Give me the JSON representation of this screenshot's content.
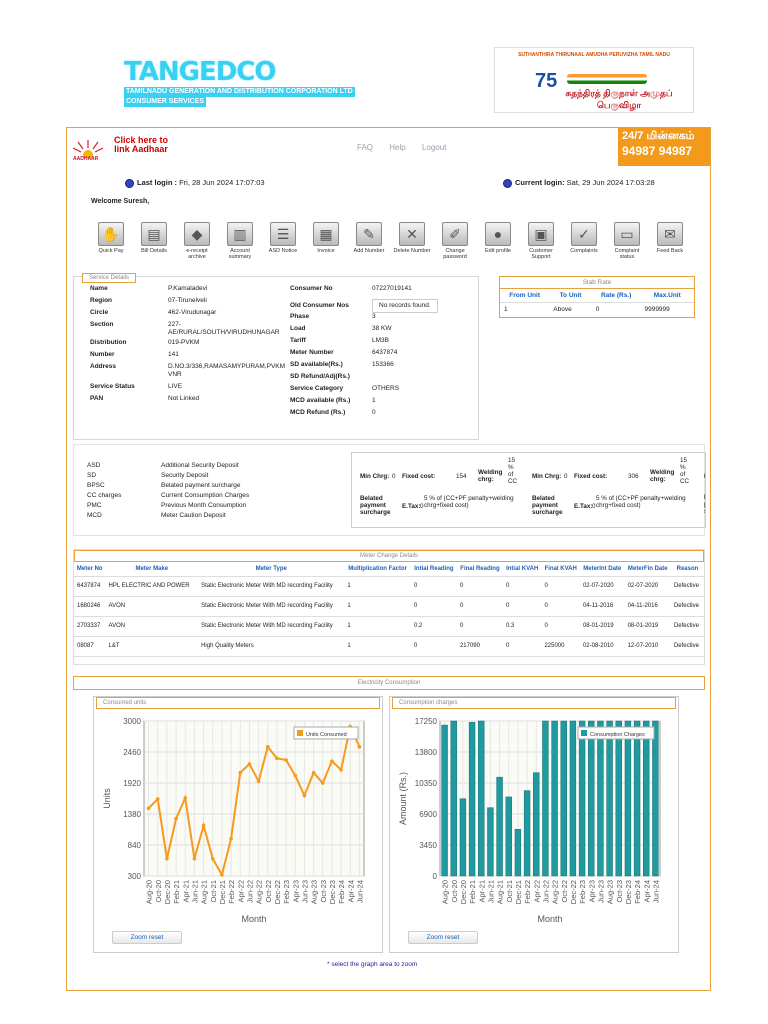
{
  "brand": {
    "name": "TANGEDCO",
    "line1": "TAMILNADU GENERATION AND DISTRIBUTION CORPORATION LTD",
    "line2": "CONSUMER SERVICES"
  },
  "azadi": {
    "title": "SUTHANTHIRA THIRUNAAL AMUDHA PERUVIZHA TAMIL NADU",
    "number": "75",
    "tamil": "சுதந்திரத் திருநாள் அமுதப் பெருவிழா"
  },
  "aadhaar": {
    "label": "AADHAAR",
    "link": "Click here to link Aadhaar"
  },
  "toplinks": [
    "FAQ",
    "Help",
    "Logout"
  ],
  "minnagam": {
    "title": "24/7 மின்னகம்",
    "phone": "94987 94987"
  },
  "login": {
    "last_label": "Last login :",
    "last_value": "Fri, 28 Jun 2024 17:07:03",
    "current_label": "Current login:",
    "current_value": "Sat, 29 Jun 2024 17:03:28"
  },
  "welcome": "Welcome Suresh,",
  "toolbar": [
    {
      "label": "Quick Pay",
      "icon": "hand-coins-icon"
    },
    {
      "label": "Bill Details",
      "icon": "bill-icon"
    },
    {
      "label": "e-receipt archive",
      "icon": "box-icon"
    },
    {
      "label": "Account summary",
      "icon": "documents-icon"
    },
    {
      "label": "ASD Notice",
      "icon": "notice-icon"
    },
    {
      "label": "Invoice",
      "icon": "invoice-icon"
    },
    {
      "label": "Add Number",
      "icon": "add-number-icon"
    },
    {
      "label": "Delete Number",
      "icon": "delete-icon"
    },
    {
      "label": "Change password",
      "icon": "pencil-icon"
    },
    {
      "label": "Edit profile",
      "icon": "user-icon"
    },
    {
      "label": "Customer Support",
      "icon": "support-icon"
    },
    {
      "label": "Complaints",
      "icon": "checklist-icon"
    },
    {
      "label": "Complaint status",
      "icon": "status-icon"
    },
    {
      "label": "Feed Back",
      "icon": "mail-icon"
    }
  ],
  "service": {
    "title": "Service Details",
    "left": [
      {
        "k": "Name",
        "v": "P.Kamaladevi"
      },
      {
        "k": "Region",
        "v": "07-Tirunelveli"
      },
      {
        "k": "Circle",
        "v": "462-Virudunagar"
      },
      {
        "k": "Section",
        "v": "227-AE/RURAL/SOUTH/VIRUDHUNAGAR"
      },
      {
        "k": "Distribution",
        "v": "019-PVKM"
      },
      {
        "k": "Number",
        "v": "141"
      },
      {
        "k": "Address",
        "v": "D.NO.3/336,RAMASAMYPURAM,PVKM VNR"
      },
      {
        "k": "Service Status",
        "v": "LIVE"
      },
      {
        "k": "PAN",
        "v": "Not Linked"
      }
    ],
    "right": [
      {
        "k": "Consumer No",
        "v": "07227019141"
      },
      {
        "k": "Old Consumer Nos",
        "v": "No records found."
      },
      {
        "k": "Phase",
        "v": "3"
      },
      {
        "k": "Load",
        "v": "38 KW"
      },
      {
        "k": "Tariff",
        "v": "LM3B"
      },
      {
        "k": "Meter Number",
        "v": "6437874"
      },
      {
        "k": "SD available(Rs.)",
        "v": "153366"
      },
      {
        "k": "SD Refund/Adj(Rs.)",
        "v": ""
      },
      {
        "k": "Service Category",
        "v": "OTHERS"
      },
      {
        "k": "MCD available (Rs.)",
        "v": "1"
      },
      {
        "k": "MCD Refund (Rs.)",
        "v": "0"
      }
    ]
  },
  "slab": {
    "title": "Slab Rate",
    "headers": [
      "From Unit",
      "To Unit",
      "Rate (Rs.)",
      "Max.Unit"
    ],
    "row": [
      "1",
      "Above",
      "0",
      "9999999"
    ]
  },
  "abbreviations": [
    {
      "a": "ASD",
      "d": "Additional Security Deposit"
    },
    {
      "a": "SD",
      "d": "Security Deposit"
    },
    {
      "a": "BPSC",
      "d": "Belated payment surcharge"
    },
    {
      "a": "CC charges",
      "d": "Current Consumption Charges"
    },
    {
      "a": "PMC",
      "d": "Previous Month Consumption"
    },
    {
      "a": "MCD",
      "d": "Meter Caution Deposit"
    }
  ],
  "tariff": [
    {
      "min_label": "Min Chrg:",
      "min": "0",
      "fixed_label": "Fixed cost:",
      "fixed": "154",
      "weld_label": "Welding chrg:",
      "weld": "15 % of CC",
      "belated_label": "Belated payment surcharge",
      "belated": "5 % of (CC+PF penalty+welding chrg+fixed cost)",
      "etax_label": "E.Tax:",
      "etax": "0"
    },
    {
      "min_label": "Min Chrg:",
      "min": "0",
      "fixed_label": "Fixed cost:",
      "fixed": "306",
      "weld_label": "Welding chrg:",
      "weld": "15 % of CC",
      "belated_label": "Belated payment surcharge",
      "belated": "5 % of (CC+PF penalty+welding chrg+fixed cost)",
      "etax_label": "E.Tax:",
      "etax": "0"
    }
  ],
  "tariff_overflow": {
    "min": "Min",
    "bela": "Bela",
    "pay": "pay",
    "sur": "sur"
  },
  "meter_change": {
    "title": "Meter Change Details",
    "headers": [
      "Meter No",
      "Meter Make",
      "Meter Type",
      "Multiplication Factor",
      "Intial Reading",
      "Final Reading",
      "Intial KVAH",
      "Final KVAH",
      "MeterInt Date",
      "MeterFin Date",
      "Reason"
    ],
    "rows": [
      [
        "6437874",
        "HPL ELECTRIC AND POWER",
        "Static Electronic Meter With MD recording Facility",
        "1",
        "0",
        "0",
        "0",
        "0",
        "02-07-2020",
        "02-07-2020",
        "Defective"
      ],
      [
        "1680246",
        "AVON",
        "Static Electronic Meter With MD recording Facility",
        "1",
        "0",
        "0",
        "0",
        "0",
        "04-11-2016",
        "04-11-2016",
        "Defective"
      ],
      [
        "2703337",
        "AVON",
        "Static Electronic Meter With MD recording Facility",
        "1",
        "0.2",
        "0",
        "0.3",
        "0",
        "08-01-2019",
        "08-01-2019",
        "Defective"
      ],
      [
        "08087",
        "L&T",
        "High Quality Meters",
        "1",
        "0",
        "217090",
        "0",
        "225000",
        "02-08-2010",
        "12-07-2010",
        "Defective"
      ]
    ]
  },
  "consumption_title": "Electricity Consumption",
  "zoom_label": "Zoom reset",
  "hint": "* select the graph area to zoom",
  "chart_data": [
    {
      "type": "line",
      "title": "Consumed units",
      "xlabel": "Month",
      "ylabel": "Units",
      "legend": "Units Consumed",
      "legend_position": "top-right",
      "ylim": [
        300,
        3000
      ],
      "yticks": [
        300,
        840,
        1380,
        1920,
        2460,
        3000
      ],
      "xticks": [
        "Aug-20",
        "Oct-20",
        "Dec-20",
        "Feb-21",
        "Apr-21",
        "Jun-21",
        "Aug-21",
        "Oct-21",
        "Dec-21",
        "Feb-22",
        "Apr-22",
        "Jun-22",
        "Aug-22",
        "Oct-22",
        "Dec-22",
        "Feb-23",
        "Apr-23",
        "Jun-23",
        "Aug-23",
        "Oct-23",
        "Dec-23",
        "Feb-24",
        "Apr-24",
        "Jun-24"
      ],
      "values": [
        1480,
        1640,
        600,
        1300,
        1660,
        600,
        1180,
        600,
        320,
        950,
        2100,
        2250,
        1950,
        2550,
        2350,
        2320,
        2050,
        1700,
        2100,
        1920,
        2300,
        2150,
        2900,
        2550
      ],
      "color": "#f59a1c",
      "grid": true
    },
    {
      "type": "bar",
      "title": "Consumption charges",
      "xlabel": "Month",
      "ylabel": "Amount (Rs.)",
      "legend": "Consumption Charges",
      "legend_position": "top-right",
      "ylim": [
        0,
        17250
      ],
      "yticks": [
        0,
        3450,
        6900,
        10350,
        13800,
        17250
      ],
      "xticks": [
        "Aug-20",
        "Oct-20",
        "Dec-20",
        "Feb-21",
        "Apr-21",
        "Jun-21",
        "Aug-21",
        "Oct-21",
        "Dec-21",
        "Feb-22",
        "Apr-22",
        "Jun-22",
        "Aug-22",
        "Oct-22",
        "Dec-22",
        "Feb-23",
        "Apr-23",
        "Jun-23",
        "Aug-23",
        "Oct-23",
        "Dec-23",
        "Feb-24",
        "Apr-24",
        "Jun-24"
      ],
      "values": [
        16800,
        17250,
        8600,
        17100,
        17250,
        7600,
        11000,
        8800,
        5200,
        9500,
        11500,
        17250,
        17250,
        17250,
        17250,
        17250,
        17250,
        17250,
        17250,
        17250,
        17250,
        17250,
        17250,
        17250
      ],
      "color": "#1f9aa0",
      "grid": true
    }
  ]
}
